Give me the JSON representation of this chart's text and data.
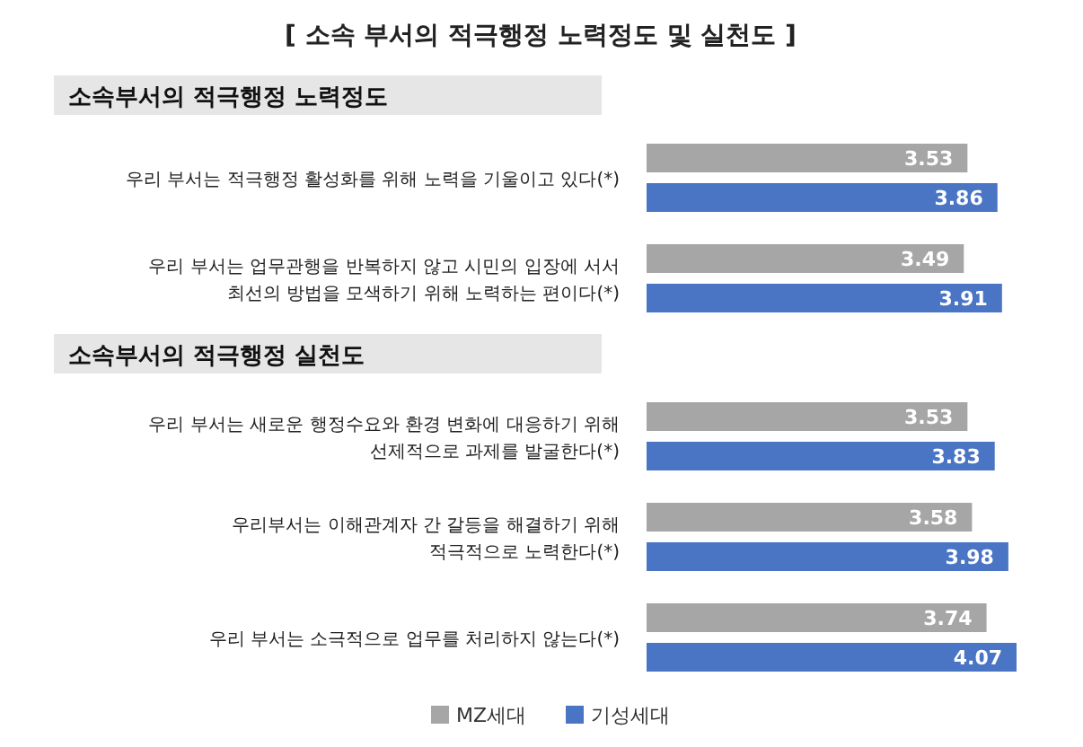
{
  "chart_data": {
    "type": "bar",
    "orientation": "horizontal",
    "title": "[ 소속 부서의 적극행정 노력정도 및 실천도 ]",
    "categories": [
      null,
      "우리 부서는 적극행정 활성화를 위해 노력을 기울이고 있다(*)",
      "우리 부서는 업무관행을 반복하지 않고 시민의 입장에 서서\n최선의 방법을 모색하기 위해 노력하는 편이다(*)",
      null,
      "우리 부서는 새로운 행정수요와 환경 변화에 대응하기 위해\n선제적으로 과제를 발굴한다(*)",
      "우리부서는 이해관계자 간 갈등을 해결하기 위해\n적극적으로 노력한다(*)",
      "우리 부서는 소극적으로 업무를 처리하지 않는다(*)"
    ],
    "series": [
      {
        "name": "MZ세대",
        "color": "#a6a6a6",
        "values": [
          null,
          3.53,
          3.49,
          null,
          3.53,
          3.58,
          3.74
        ]
      },
      {
        "name": "기성세대",
        "color": "#4a74c4",
        "values": [
          null,
          3.86,
          3.91,
          null,
          3.83,
          3.98,
          4.07
        ]
      }
    ],
    "data_labels": true,
    "legend": "bottom",
    "annotations": [
      "소속부서의 적극행정 노력정도",
      "소속부서의 적극행정 실천도"
    ]
  }
}
